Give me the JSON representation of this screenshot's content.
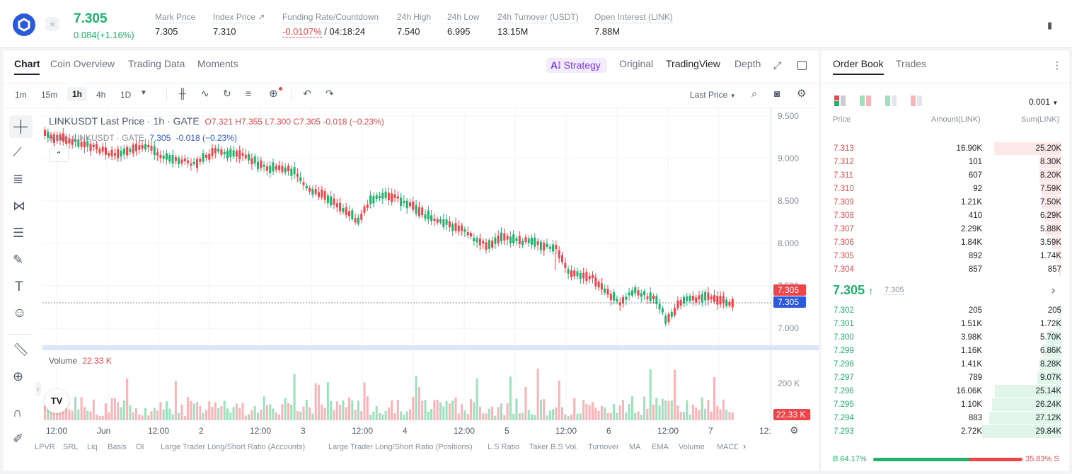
{
  "ticker": {
    "last_price": "7.305",
    "change": "0.084(+1.16%)",
    "stats": [
      {
        "label": "Mark Price",
        "value": "7.305",
        "left": 219
      },
      {
        "label": "Index Price ↗",
        "value": "7.310",
        "left": 301
      },
      {
        "label": "24h High",
        "value": "7.540",
        "left": 561
      },
      {
        "label": "24h Low",
        "value": "6.995",
        "left": 632
      },
      {
        "label": "24h Turnover (USDT)",
        "value": "13.15M",
        "left": 703
      },
      {
        "label": "Open Interest (LINK)",
        "value": "7.88M",
        "left": 840
      }
    ],
    "funding_label": "Funding Rate/Countdown",
    "funding_rate": "-0.0107%",
    "countdown": "/ 04:18:24"
  },
  "chart_tabs": [
    "Chart",
    "Coin Overview",
    "Trading Data",
    "Moments"
  ],
  "view_tabs": {
    "strategy": "Strategy",
    "original": "Original",
    "tradingview": "TradingView",
    "depth": "Depth"
  },
  "intervals": [
    "1m",
    "15m",
    "1h",
    "4h",
    "1D"
  ],
  "price_type": "Last Price",
  "legend": {
    "title": "LINKUSDT Last Price · 1h · GATE",
    "o": "O7.321",
    "h": "H7.355",
    "l": "L7.300",
    "c": "C7.305",
    "chg": "-0.018 (−0.23%)",
    "mark_label": "mark_LINKUSDT · GATE",
    "mark_val": "7.305",
    "mark_chg": "-0.018 (−0.23%)"
  },
  "volume_legend": {
    "label": "Volume",
    "value": "22.33 K"
  },
  "price_axis": [
    "9.500",
    "9.000",
    "8.500",
    "8.000",
    "7.500",
    "7.000"
  ],
  "price_tags": {
    "last": "7.305",
    "mark": "7.305"
  },
  "vol_axis": "200 K",
  "vol_tag": "22.33 K",
  "time_axis": [
    "12:00",
    "Jun",
    "12:00",
    "2",
    "12:00",
    "3",
    "12:00",
    "4",
    "12:00",
    "5",
    "12:00",
    "6",
    "12:00",
    "7",
    "12:"
  ],
  "indicators": [
    "LPVR",
    "SRL",
    "Liq",
    "Basis",
    "OI",
    "Large Trader Long/Short Ratio (Accounts)",
    "Large Trader Long/Short Ratio (Positions)",
    "L.S Ratio",
    "Taker B.S Vol.",
    "Turnover",
    "MA",
    "EMA",
    "Volume",
    "MACD"
  ],
  "orderbook": {
    "tabs": [
      "Order Book",
      "Trades"
    ],
    "precision": "0.001",
    "headers": [
      "Price",
      "Amount(LINK)",
      "Sum(LINK)"
    ],
    "asks": [
      {
        "p": "7.313",
        "a": "16.90K",
        "s": "25.20K",
        "d": 25.2
      },
      {
        "p": "7.312",
        "a": "101",
        "s": "8.30K",
        "d": 8.3
      },
      {
        "p": "7.311",
        "a": "607",
        "s": "8.20K",
        "d": 8.2
      },
      {
        "p": "7.310",
        "a": "92",
        "s": "7.59K",
        "d": 7.59
      },
      {
        "p": "7.309",
        "a": "1.21K",
        "s": "7.50K",
        "d": 7.5
      },
      {
        "p": "7.308",
        "a": "410",
        "s": "6.29K",
        "d": 6.29
      },
      {
        "p": "7.307",
        "a": "2.29K",
        "s": "5.88K",
        "d": 5.88
      },
      {
        "p": "7.306",
        "a": "1.84K",
        "s": "3.59K",
        "d": 3.59
      },
      {
        "p": "7.305",
        "a": "892",
        "s": "1.74K",
        "d": 1.74
      },
      {
        "p": "7.304",
        "a": "857",
        "s": "857",
        "d": 0.857
      }
    ],
    "mid_price": "7.305",
    "mid_mark": "7.305",
    "bids": [
      {
        "p": "7.302",
        "a": "205",
        "s": "205",
        "d": 0.205
      },
      {
        "p": "7.301",
        "a": "1.51K",
        "s": "1.72K",
        "d": 1.72
      },
      {
        "p": "7.300",
        "a": "3.98K",
        "s": "5.70K",
        "d": 5.7
      },
      {
        "p": "7.299",
        "a": "1.16K",
        "s": "6.86K",
        "d": 6.86
      },
      {
        "p": "7.298",
        "a": "1.41K",
        "s": "8.28K",
        "d": 8.28
      },
      {
        "p": "7.297",
        "a": "789",
        "s": "9.07K",
        "d": 9.07
      },
      {
        "p": "7.296",
        "a": "16.06K",
        "s": "25.14K",
        "d": 25.14
      },
      {
        "p": "7.295",
        "a": "1.10K",
        "s": "26.24K",
        "d": 26.24
      },
      {
        "p": "7.294",
        "a": "883",
        "s": "27.12K",
        "d": 27.12
      },
      {
        "p": "7.293",
        "a": "2.72K",
        "s": "29.84K",
        "d": 29.84
      }
    ],
    "buy_ratio": "B  64.17%",
    "sell_ratio": "35.83%  S",
    "buy_pct": 64.17
  },
  "colors": {
    "up": "#20b26c",
    "down": "#ef454a",
    "accent": "#7c3aed",
    "mark": "#2a5ada"
  }
}
